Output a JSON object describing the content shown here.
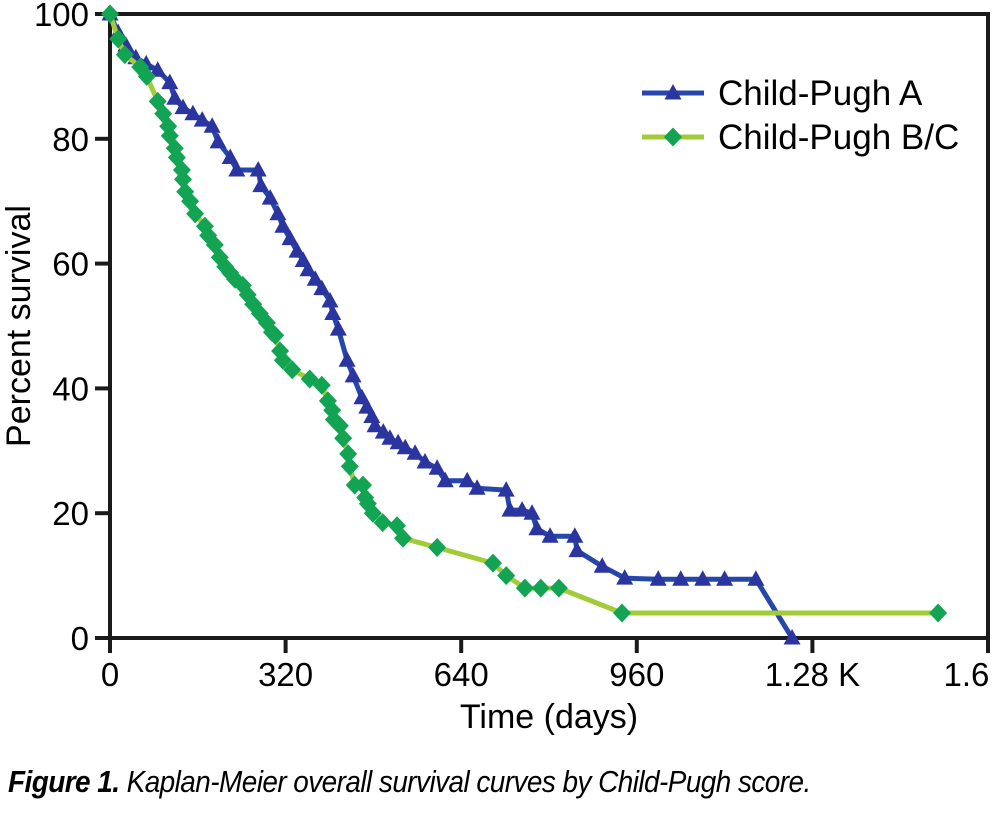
{
  "figure": {
    "caption_label": "Figure 1.",
    "caption_text": " Kaplan-Meier overall survival curves by Child-Pugh score."
  },
  "colors": {
    "axis": "#1a1a1a",
    "text": "#000000",
    "background": "#ffffff",
    "series_a_line": "#2547a9",
    "series_a_marker": "#2b35a0",
    "series_b_line": "#a2cb3a",
    "series_b_marker": "#12a452"
  },
  "chart_data": {
    "type": "line",
    "title": "",
    "xlabel": "Time (days)",
    "ylabel": "Percent survival",
    "xlim": [
      0,
      1600
    ],
    "ylim": [
      0,
      100
    ],
    "grid": false,
    "legend_position": "top-right",
    "x_ticks": [
      {
        "value": 0,
        "label": "0"
      },
      {
        "value": 320,
        "label": "320"
      },
      {
        "value": 640,
        "label": "640"
      },
      {
        "value": 960,
        "label": "960"
      },
      {
        "value": 1280,
        "label": "1.28 K"
      },
      {
        "value": 1600,
        "label": "1.6 K"
      }
    ],
    "y_ticks": [
      {
        "value": 0,
        "label": "0"
      },
      {
        "value": 20,
        "label": "20"
      },
      {
        "value": 40,
        "label": "40"
      },
      {
        "value": 60,
        "label": "60"
      },
      {
        "value": 80,
        "label": "80"
      },
      {
        "value": 100,
        "label": "100"
      }
    ],
    "series": [
      {
        "name": "Child-Pugh A",
        "marker": "triangle",
        "line_color": "#2547a9",
        "marker_color": "#2b35a0",
        "points": [
          [
            0,
            100
          ],
          [
            15,
            97
          ],
          [
            29,
            95
          ],
          [
            47,
            93
          ],
          [
            66,
            92
          ],
          [
            87,
            91
          ],
          [
            109,
            89
          ],
          [
            118,
            86.5
          ],
          [
            133,
            85
          ],
          [
            151,
            84
          ],
          [
            168,
            83
          ],
          [
            186,
            82
          ],
          [
            197,
            79.5
          ],
          [
            219,
            77
          ],
          [
            231,
            75
          ],
          [
            270,
            75
          ],
          [
            275,
            72.5
          ],
          [
            292,
            70.5
          ],
          [
            306,
            68
          ],
          [
            315,
            66
          ],
          [
            328,
            64
          ],
          [
            341,
            62
          ],
          [
            352,
            60.5
          ],
          [
            361,
            59
          ],
          [
            374,
            57.5
          ],
          [
            386,
            56
          ],
          [
            401,
            54
          ],
          [
            406,
            52
          ],
          [
            416,
            49.5
          ],
          [
            432,
            44.5
          ],
          [
            443,
            42
          ],
          [
            459,
            38.5
          ],
          [
            468,
            37
          ],
          [
            477,
            35.5
          ],
          [
            483,
            34
          ],
          [
            498,
            33
          ],
          [
            510,
            32
          ],
          [
            525,
            31.3
          ],
          [
            538,
            30.5
          ],
          [
            556,
            29.6
          ],
          [
            574,
            28.2
          ],
          [
            596,
            27.2
          ],
          [
            611,
            25.2
          ],
          [
            651,
            25.2
          ],
          [
            669,
            24
          ],
          [
            722,
            23.7
          ],
          [
            729,
            20.5
          ],
          [
            751,
            20.5
          ],
          [
            769,
            20
          ],
          [
            778,
            17.5
          ],
          [
            802,
            16.3
          ],
          [
            847,
            16.3
          ],
          [
            851,
            14
          ],
          [
            897,
            11.5
          ],
          [
            938,
            9.6
          ],
          [
            999,
            9.4
          ],
          [
            1040,
            9.4
          ],
          [
            1080,
            9.4
          ],
          [
            1120,
            9.4
          ],
          [
            1177,
            9.4
          ],
          [
            1243,
            0
          ]
        ]
      },
      {
        "name": "Child-Pugh B/C",
        "marker": "diamond",
        "line_color": "#a2cb3a",
        "marker_color": "#12a452",
        "points": [
          [
            0,
            100
          ],
          [
            15,
            96
          ],
          [
            27,
            93.5
          ],
          [
            55,
            91.5
          ],
          [
            67,
            90
          ],
          [
            87,
            86
          ],
          [
            97,
            84
          ],
          [
            106,
            82
          ],
          [
            109,
            80.5
          ],
          [
            118,
            78.5
          ],
          [
            122,
            77
          ],
          [
            131,
            75
          ],
          [
            133,
            73.5
          ],
          [
            137,
            71.5
          ],
          [
            146,
            70
          ],
          [
            155,
            68
          ],
          [
            173,
            66
          ],
          [
            179,
            64.5
          ],
          [
            191,
            63
          ],
          [
            200,
            61
          ],
          [
            210,
            59.5
          ],
          [
            219,
            58.5
          ],
          [
            228,
            57.5
          ],
          [
            242,
            56.5
          ],
          [
            251,
            55
          ],
          [
            261,
            53.5
          ],
          [
            273,
            52
          ],
          [
            286,
            50.5
          ],
          [
            295,
            49
          ],
          [
            301,
            48.5
          ],
          [
            310,
            46
          ],
          [
            315,
            44.5
          ],
          [
            332,
            43
          ],
          [
            364,
            41.5
          ],
          [
            386,
            40.5
          ],
          [
            397,
            38
          ],
          [
            405,
            36.5
          ],
          [
            408,
            35
          ],
          [
            419,
            34
          ],
          [
            425,
            32
          ],
          [
            434,
            29.5
          ],
          [
            437,
            27.5
          ],
          [
            446,
            24.5
          ],
          [
            461,
            24.5
          ],
          [
            465,
            22.5
          ],
          [
            470,
            21.5
          ],
          [
            479,
            20
          ],
          [
            497,
            18.5
          ],
          [
            523,
            18
          ],
          [
            534,
            16
          ],
          [
            596,
            14.5
          ],
          [
            698,
            12
          ],
          [
            722,
            10
          ],
          [
            756,
            8
          ],
          [
            785,
            8
          ],
          [
            818,
            8
          ],
          [
            933,
            4
          ],
          [
            1509,
            4
          ]
        ]
      }
    ]
  }
}
